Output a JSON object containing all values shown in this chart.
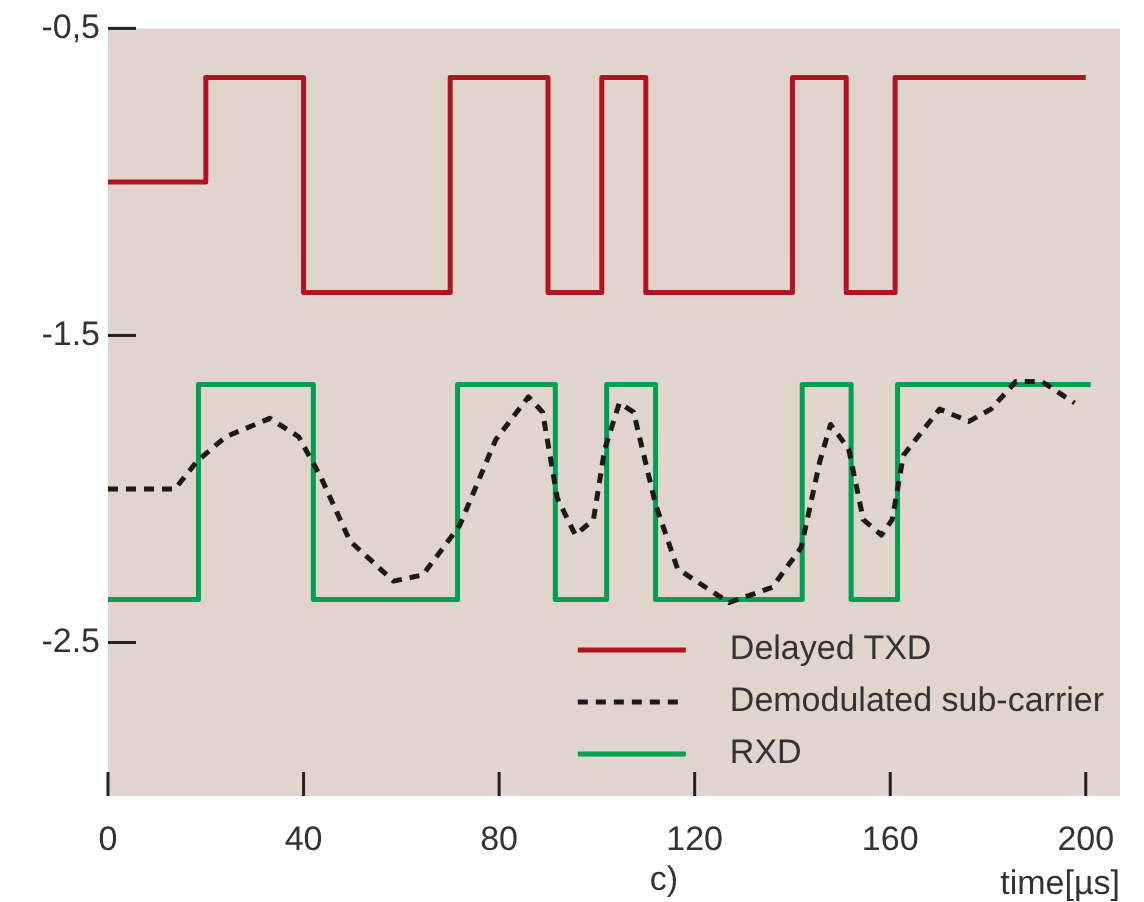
{
  "chart_data": {
    "type": "step",
    "xlabel": "time[µs]",
    "annotations": [
      "c)"
    ],
    "xlim": [
      0,
      207
    ],
    "xticks": [
      0,
      40,
      80,
      120,
      160,
      200
    ],
    "ylim": [
      -3,
      -0.5
    ],
    "yticks": [
      {
        "value": -0.5,
        "label": "-0,5"
      },
      -1.5,
      -2.5
    ],
    "grid": false,
    "legend": "bottom right",
    "series": [
      {
        "name": "Delayed TXD",
        "color": "#b0141e",
        "line_style": "solid",
        "x": [
          0,
          20,
          40,
          70,
          90,
          101,
          110,
          140,
          151,
          161,
          200
        ],
        "values": [
          -1.0,
          -0.66,
          -1.36,
          -0.66,
          -1.36,
          -0.66,
          -1.36,
          -0.66,
          -1.36,
          -0.66,
          -0.66
        ]
      },
      {
        "name": "Demodulated sub-carrier",
        "type": "line",
        "color": "#1a1a1a",
        "line_style": "dashed",
        "x": [
          0,
          13.7,
          18.2,
          24.1,
          33.1,
          39,
          43.5,
          49.5,
          58.4,
          64.4,
          71.9,
          79.3,
          86,
          88.9,
          91.9,
          95.6,
          99.3,
          101.6,
          104.6,
          107.5,
          112,
          116.5,
          127,
          135.9,
          141.8,
          145.6,
          147.8,
          151.5,
          154.5,
          158.2,
          160.4,
          162.7,
          170.1,
          176.1,
          180.6,
          185.7,
          191,
          197.7
        ],
        "values": [
          -2.0,
          -2.0,
          -1.91,
          -1.83,
          -1.77,
          -1.83,
          -1.96,
          -2.17,
          -2.3,
          -2.28,
          -2.12,
          -1.84,
          -1.7,
          -1.75,
          -2.03,
          -2.15,
          -2.1,
          -1.87,
          -1.72,
          -1.75,
          -2.05,
          -2.26,
          -2.37,
          -2.32,
          -2.19,
          -1.91,
          -1.79,
          -1.87,
          -2.1,
          -2.15,
          -2.1,
          -1.89,
          -1.74,
          -1.78,
          -1.74,
          -1.65,
          -1.65,
          -1.72
        ]
      },
      {
        "name": "RXD",
        "color": "#00a050",
        "line_style": "solid",
        "x": [
          0,
          18.5,
          42,
          71.5,
          91.5,
          102,
          112,
          142,
          152,
          161.5,
          201
        ],
        "values": [
          -2.36,
          -1.66,
          -2.36,
          -1.66,
          -2.36,
          -1.66,
          -2.36,
          -1.66,
          -2.36,
          -1.66,
          -1.66
        ]
      }
    ]
  }
}
